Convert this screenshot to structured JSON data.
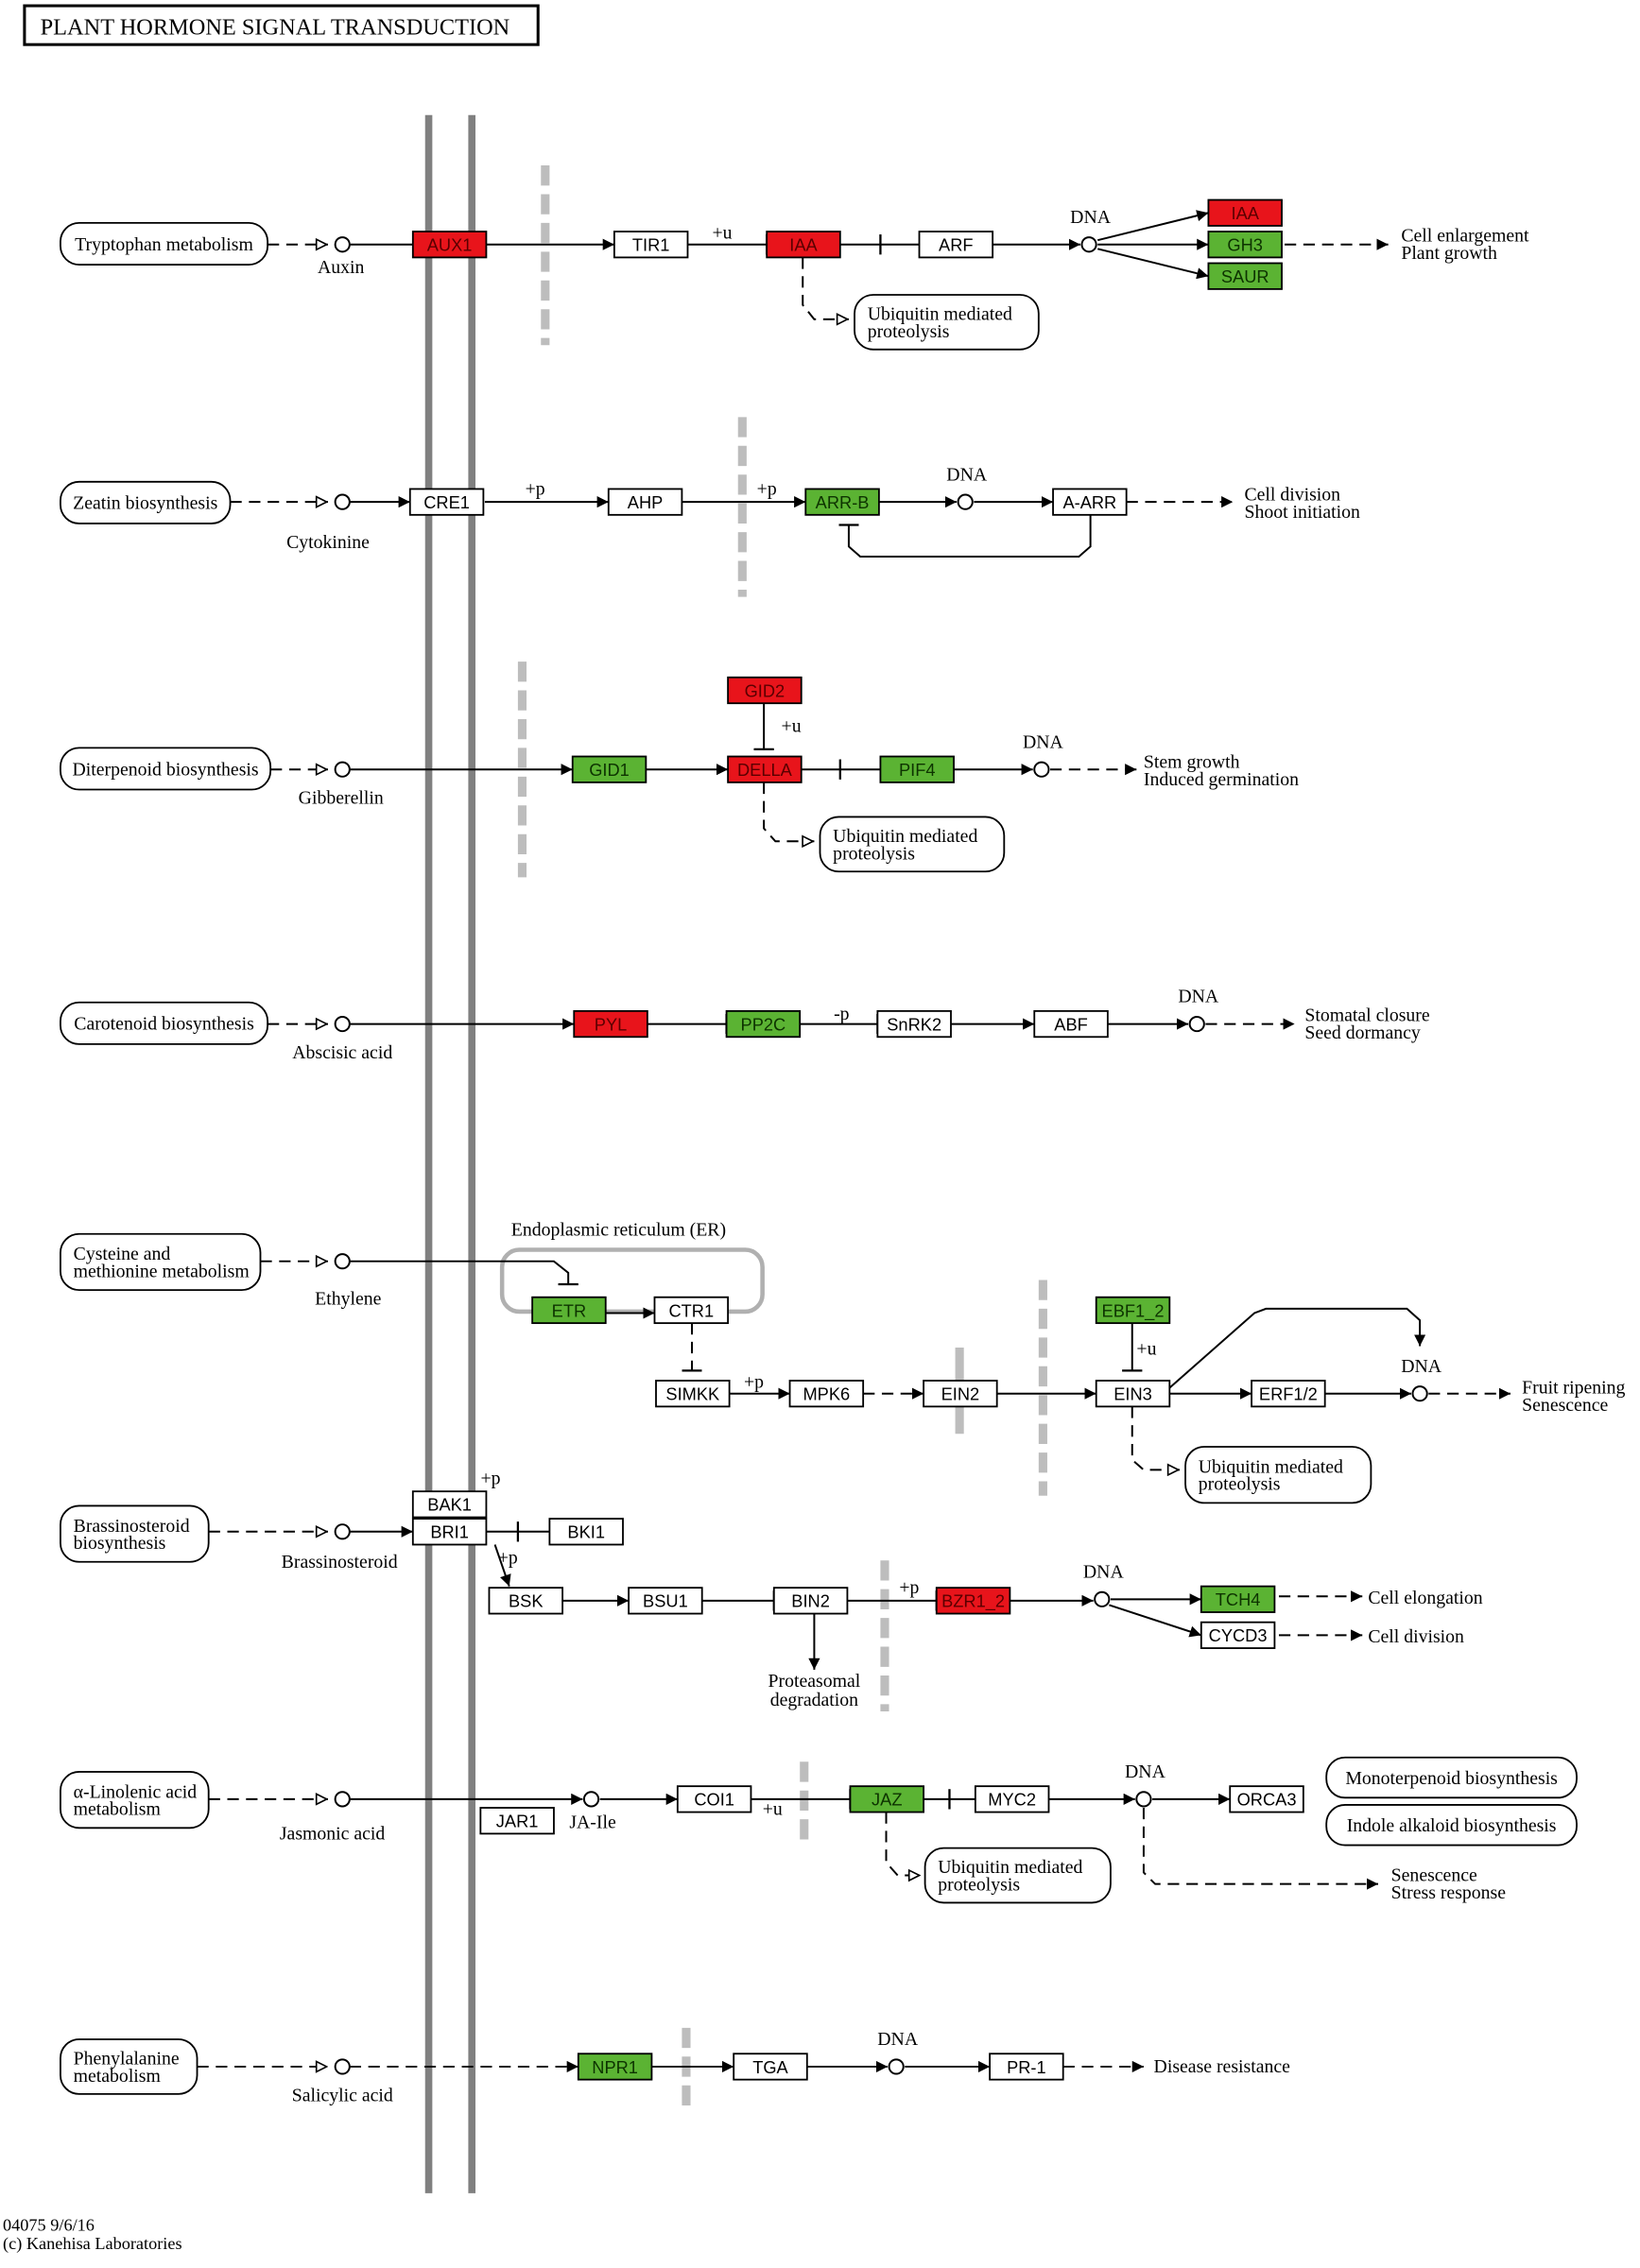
{
  "title": "PLANT HORMONE SIGNAL TRANSDUCTION",
  "colors": {
    "red": "#e8141b",
    "green": "#5bb333",
    "none": "#ffffff",
    "membrane": "#808080",
    "barrier": "#bdbdbd"
  },
  "genes": {
    "AUX1": {
      "label": "AUX1",
      "status": "red"
    },
    "TIR1": {
      "label": "TIR1",
      "status": "none"
    },
    "IAA1": {
      "label": "IAA",
      "status": "red"
    },
    "ARF": {
      "label": "ARF",
      "status": "none"
    },
    "IAA2": {
      "label": "IAA",
      "status": "red"
    },
    "GH3": {
      "label": "GH3",
      "status": "green"
    },
    "SAUR": {
      "label": "SAUR",
      "status": "green"
    },
    "CRE1": {
      "label": "CRE1",
      "status": "none"
    },
    "AHP": {
      "label": "AHP",
      "status": "none"
    },
    "ARRB": {
      "label": "ARR-B",
      "status": "green"
    },
    "AARR": {
      "label": "A-ARR",
      "status": "none"
    },
    "GID2": {
      "label": "GID2",
      "status": "red"
    },
    "GID1": {
      "label": "GID1",
      "status": "green"
    },
    "DELLA": {
      "label": "DELLA",
      "status": "red"
    },
    "PIF4": {
      "label": "PIF4",
      "status": "green"
    },
    "PYL": {
      "label": "PYL",
      "status": "red"
    },
    "PP2C": {
      "label": "PP2C",
      "status": "green"
    },
    "SnRK2": {
      "label": "SnRK2",
      "status": "none"
    },
    "ABF": {
      "label": "ABF",
      "status": "none"
    },
    "ETR": {
      "label": "ETR",
      "status": "green"
    },
    "CTR1": {
      "label": "CTR1",
      "status": "none"
    },
    "EBF1_2": {
      "label": "EBF1_2",
      "status": "green"
    },
    "SIMKK": {
      "label": "SIMKK",
      "status": "none"
    },
    "MPK6": {
      "label": "MPK6",
      "status": "none"
    },
    "EIN2": {
      "label": "EIN2",
      "status": "none"
    },
    "EIN3": {
      "label": "EIN3",
      "status": "none"
    },
    "ERF12": {
      "label": "ERF1/2",
      "status": "none"
    },
    "BAK1": {
      "label": "BAK1",
      "status": "none"
    },
    "BRI1": {
      "label": "BRI1",
      "status": "none"
    },
    "BKI1": {
      "label": "BKI1",
      "status": "none"
    },
    "BSK": {
      "label": "BSK",
      "status": "none"
    },
    "BSU1": {
      "label": "BSU1",
      "status": "none"
    },
    "BIN2": {
      "label": "BIN2",
      "status": "none"
    },
    "BZR1_2": {
      "label": "BZR1_2",
      "status": "red"
    },
    "TCH4": {
      "label": "TCH4",
      "status": "green"
    },
    "CYCD3": {
      "label": "CYCD3",
      "status": "none"
    },
    "JAR1": {
      "label": "JAR1",
      "status": "none"
    },
    "COI1": {
      "label": "COI1",
      "status": "none"
    },
    "JAZ": {
      "label": "JAZ",
      "status": "green"
    },
    "MYC2": {
      "label": "MYC2",
      "status": "none"
    },
    "ORCA3": {
      "label": "ORCA3",
      "status": "none"
    },
    "NPR1": {
      "label": "NPR1",
      "status": "green"
    },
    "TGA": {
      "label": "TGA",
      "status": "none"
    },
    "PR1": {
      "label": "PR-1",
      "status": "none"
    }
  },
  "maps": [
    [
      "Tryptophan metabolism"
    ],
    [
      "Zeatin biosynthesis"
    ],
    [
      "Diterpenoid biosynthesis"
    ],
    [
      "Carotenoid biosynthesis"
    ],
    [
      "Cysteine and",
      "methionine metabolism"
    ],
    [
      "Brassinosteroid",
      "biosynthesis"
    ],
    [
      "α-Linolenic acid",
      "metabolism"
    ],
    [
      "Phenylalanine",
      "metabolism"
    ],
    [
      "Ubiquitin mediated",
      "proteolysis"
    ],
    [
      "Ubiquitin mediated",
      "proteolysis"
    ],
    [
      "Ubiquitin mediated",
      "proteolysis"
    ],
    [
      "Ubiquitin mediated",
      "proteolysis"
    ],
    [
      "Monoterpenoid biosynthesis"
    ],
    [
      "Indole alkaloid biosynthesis"
    ]
  ],
  "compounds": [
    "Auxin",
    "Cytokinine",
    "Gibberellin",
    "Abscisic acid",
    "Ethylene",
    "Brassinosteroid",
    "Jasmonic acid",
    "JA-Ile",
    "Salicylic acid"
  ],
  "dna_label": "DNA",
  "notes": [
    "+u",
    "+p",
    "+p",
    "+u",
    "-p",
    "+u",
    "+p",
    "+p",
    "+p",
    "+p",
    "+u",
    "Endoplasmic reticulum (ER)",
    "Proteasomal",
    "degradation"
  ],
  "outcomes": [
    [
      "Cell enlargement",
      "Plant growth"
    ],
    [
      "Cell division",
      "Shoot initiation"
    ],
    [
      "Stem growth",
      "Induced germination"
    ],
    [
      "Stomatal closure",
      "Seed dormancy"
    ],
    [
      "Fruit ripening",
      "Senescence"
    ],
    [
      "Cell elongation"
    ],
    [
      "Cell division"
    ],
    [
      "Senescence",
      "Stress response"
    ],
    [
      "Disease resistance"
    ]
  ],
  "footer": {
    "id_date": "04075 9/6/16",
    "copyright": "(c) Kanehisa Laboratories"
  }
}
